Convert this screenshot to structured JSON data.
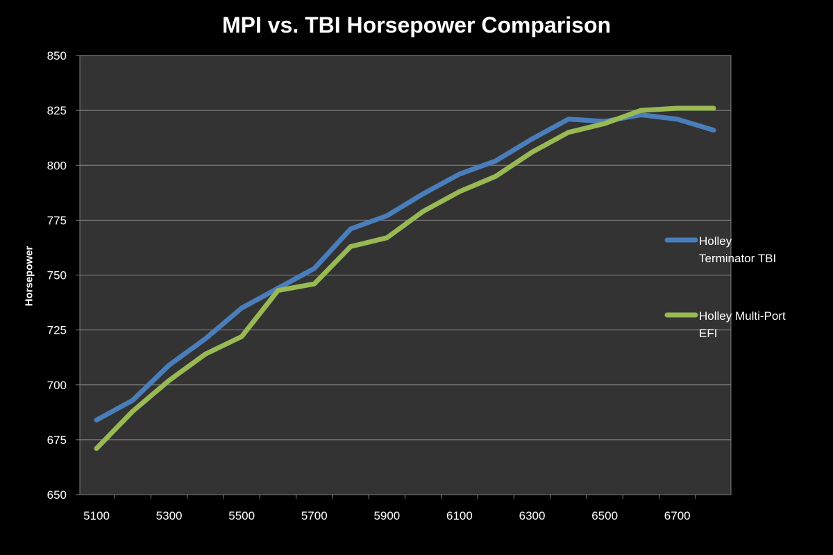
{
  "chart_data": {
    "type": "line",
    "title": "MPI vs. TBI Horsepower Comparison",
    "xlabel": "",
    "ylabel": "Horsepower",
    "x": [
      5100,
      5200,
      5300,
      5400,
      5500,
      5600,
      5700,
      5800,
      5900,
      6000,
      6100,
      6200,
      6300,
      6400,
      6500,
      6600,
      6700,
      6800
    ],
    "x_tick_labels": [
      "5100",
      "5300",
      "5500",
      "5700",
      "5900",
      "6100",
      "6300",
      "6500",
      "6700"
    ],
    "y_tick_labels": [
      "650",
      "675",
      "700",
      "725",
      "750",
      "775",
      "800",
      "825",
      "850"
    ],
    "ylim": [
      650,
      850
    ],
    "grid": true,
    "legend_position": "right",
    "background_color": "#000000",
    "plot_area_color": "#333333",
    "gridline_color": "#8c8c8c",
    "series": [
      {
        "name_lines": [
          "Holley",
          "Terminator TBI"
        ],
        "color": "#4a7ebb",
        "values": [
          684,
          693,
          709,
          721,
          735,
          744,
          753,
          771,
          777,
          787,
          796,
          802,
          812,
          821,
          820,
          823,
          821,
          816
        ]
      },
      {
        "name_lines": [
          "Holley Multi-Port",
          "EFI"
        ],
        "color": "#98b954",
        "values": [
          671,
          688,
          702,
          714,
          722,
          743,
          746,
          763,
          767,
          779,
          788,
          795,
          806,
          815,
          819,
          825,
          826,
          826
        ]
      }
    ]
  }
}
